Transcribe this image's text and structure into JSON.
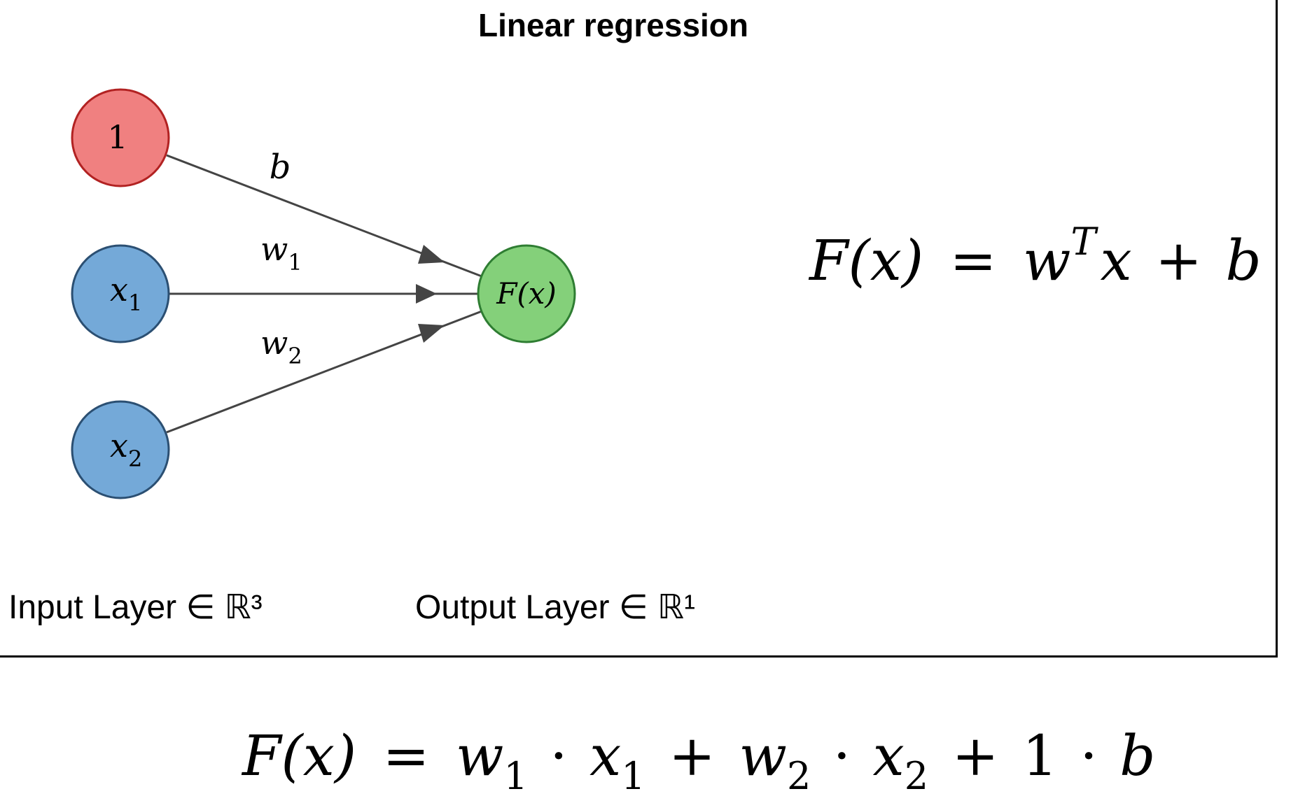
{
  "title": "Linear regression",
  "nodes": [
    {
      "id": "bias",
      "label": "1",
      "sub": "",
      "fill": "#f08080",
      "stroke": "#b22222"
    },
    {
      "id": "x1",
      "label": "x",
      "sub": "1",
      "fill": "#74a9d8",
      "stroke": "#2b4f72"
    },
    {
      "id": "x2",
      "label": "x",
      "sub": "2",
      "fill": "#74a9d8",
      "stroke": "#2b4f72"
    },
    {
      "id": "output",
      "label": "F(x)",
      "sub": "",
      "fill": "#84d07a",
      "stroke": "#2e7d32"
    }
  ],
  "edges": [
    {
      "from": "bias",
      "to": "output",
      "label": "b",
      "sub": ""
    },
    {
      "from": "x1",
      "to": "output",
      "label": "w",
      "sub": "1"
    },
    {
      "from": "x2",
      "to": "output",
      "label": "w",
      "sub": "2"
    }
  ],
  "layer_labels": {
    "input": "Input Layer ∈ ℝ³",
    "output": "Output Layer ∈ ℝ¹"
  },
  "equations": {
    "vector": {
      "lhs": "F(x)",
      "eq": "=",
      "w": "w",
      "T": "T",
      "x": "x",
      "plus": "+",
      "b": "b"
    },
    "expanded": {
      "lhs": "F(x)",
      "eq": "=",
      "w1": "w",
      "w1_sub": "1",
      "dot1": "·",
      "x1": "x",
      "x1_sub": "1",
      "plus1": "+",
      "w2": "w",
      "w2_sub": "2",
      "dot2": "·",
      "x2": "x",
      "x2_sub": "2",
      "plus2": "+",
      "one": "1",
      "dot3": "·",
      "b": "b"
    }
  },
  "colors": {
    "edge": "#444444",
    "text": "#000000"
  }
}
